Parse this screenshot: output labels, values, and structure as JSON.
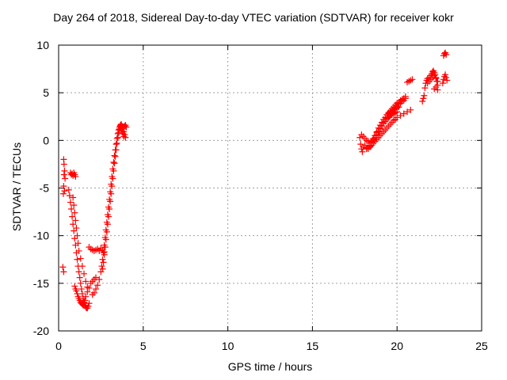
{
  "chart_data": {
    "type": "scatter",
    "title": "Day 264 of 2018, Sidereal Day-to-day VTEC variation (SDTVAR) for receiver kokr",
    "xlabel": "GPS time / hours",
    "ylabel": "SDTVAR / TECUs",
    "xlim": [
      0,
      25
    ],
    "ylim": [
      -20,
      10
    ],
    "xticks": [
      "0",
      "5",
      "10",
      "15",
      "20",
      "25"
    ],
    "yticks": [
      "10",
      "5",
      "0",
      "-5",
      "-10",
      "-15",
      "-20"
    ],
    "grid": true,
    "marker": "+",
    "color": "#ff0000",
    "series": [
      {
        "x": [
          0.25,
          0.3,
          0.3,
          0.32,
          0.35,
          0.38,
          0.3,
          0.35,
          0.28,
          0.32,
          0.7,
          0.75,
          0.8,
          0.85,
          0.9,
          0.95,
          1.0,
          0.6,
          0.65,
          0.7,
          0.75,
          0.8,
          0.85,
          0.9,
          0.95,
          1.0,
          1.05,
          1.1,
          1.15,
          1.2,
          1.25,
          1.3,
          1.35,
          1.4,
          1.45,
          1.5,
          1.55,
          1.6,
          1.65,
          1.7,
          1.75,
          1.8,
          0.85,
          0.9,
          0.95,
          1.0,
          1.05,
          1.1,
          1.15,
          1.2,
          1.3,
          1.4,
          1.5,
          1.6,
          1.7,
          0.95,
          1.0,
          1.05,
          1.1,
          1.15,
          1.2,
          1.25,
          1.3,
          1.35,
          1.4,
          1.45,
          1.5,
          1.55,
          1.6,
          1.7,
          1.8,
          1.9,
          2.0,
          2.1,
          2.2,
          1.8,
          1.9,
          2.0,
          2.1,
          2.2,
          2.3,
          2.4,
          2.5,
          2.6,
          2.7,
          2.0,
          2.1,
          2.2,
          2.3,
          2.4,
          2.5,
          2.55,
          2.6,
          2.65,
          2.7,
          2.75,
          2.8,
          2.85,
          2.9,
          2.95,
          3.0,
          3.05,
          3.1,
          3.15,
          3.2,
          3.25,
          3.3,
          3.35,
          3.4,
          3.45,
          3.5,
          3.55,
          3.6,
          3.65,
          3.7,
          3.75,
          3.8,
          3.85,
          3.9,
          3.95,
          2.6,
          2.65,
          2.7,
          2.75,
          2.8,
          2.85,
          2.9,
          2.95,
          3.0,
          3.05,
          3.1,
          3.15,
          3.2,
          3.25,
          3.3,
          3.35,
          3.4,
          3.45,
          3.5,
          3.55,
          3.6,
          3.65,
          3.7,
          3.75,
          3.8,
          3.85,
          3.9,
          3.95,
          4.0
        ],
        "y": [
          -13.3,
          -13.8,
          -2.0,
          -2.5,
          -3.2,
          -4.0,
          -4.8,
          -5.3,
          -5.6,
          -3.6,
          -3.4,
          -3.6,
          -3.5,
          -3.7,
          -3.4,
          -3.6,
          -3.8,
          -5.2,
          -5.8,
          -6.5,
          -7.2,
          -8.0,
          -8.8,
          -9.5,
          -10.3,
          -11.0,
          -11.8,
          -12.5,
          -13.2,
          -13.8,
          -14.4,
          -15.0,
          -15.6,
          -16.1,
          -16.6,
          -17.0,
          -17.3,
          -17.5,
          -17.6,
          -17.6,
          -17.4,
          -17.1,
          -6.0,
          -6.8,
          -7.6,
          -8.4,
          -9.2,
          -10.0,
          -10.8,
          -11.6,
          -12.4,
          -13.2,
          -14.0,
          -14.8,
          -15.4,
          -15.3,
          -15.6,
          -15.8,
          -16.1,
          -16.4,
          -16.6,
          -16.8,
          -17.0,
          -17.1,
          -17.2,
          -17.3,
          -17.1,
          -16.8,
          -16.4,
          -15.9,
          -15.5,
          -15.0,
          -14.8,
          -14.6,
          -14.4,
          -11.2,
          -11.4,
          -11.5,
          -11.6,
          -11.5,
          -11.4,
          -11.6,
          -11.3,
          -11.5,
          -11.7,
          -16.2,
          -16.0,
          -15.6,
          -15.2,
          -14.6,
          -13.8,
          -13.2,
          -12.5,
          -11.8,
          -11.0,
          -10.2,
          -9.4,
          -8.6,
          -7.8,
          -7.0,
          -6.2,
          -5.4,
          -4.6,
          -3.8,
          -3.0,
          -2.3,
          -1.6,
          -1.0,
          -0.4,
          0.2,
          0.7,
          1.1,
          1.4,
          1.6,
          1.7,
          1.5,
          1.2,
          0.9,
          0.6,
          0.3,
          -13.5,
          -12.8,
          -12.0,
          -11.2,
          -10.4,
          -9.6,
          -8.8,
          -8.0,
          -7.2,
          -6.4,
          -5.6,
          -4.8,
          -4.0,
          -3.2,
          -2.4,
          -1.7,
          -1.0,
          -0.3,
          0.3,
          0.8,
          1.2,
          1.5,
          1.3,
          1.0,
          0.7,
          0.4,
          1.5,
          1.6,
          1.4
        ]
      },
      {
        "x": [
          17.8,
          17.85,
          17.9,
          17.95,
          18.0,
          18.1,
          18.2,
          18.3,
          18.4,
          18.5,
          18.6,
          18.7,
          18.8,
          18.9,
          19.0,
          19.1,
          19.2,
          19.3,
          19.4,
          19.5,
          19.6,
          19.7,
          19.8,
          19.9,
          20.0,
          20.1,
          20.2,
          20.3,
          20.4,
          20.5,
          17.9,
          18.0,
          18.1,
          18.2,
          18.3,
          18.4,
          18.5,
          18.6,
          18.7,
          18.8,
          18.9,
          19.0,
          19.1,
          19.2,
          19.3,
          19.4,
          19.5,
          19.6,
          19.7,
          19.8,
          19.9,
          20.0,
          20.1,
          20.2,
          20.3,
          20.4,
          20.5,
          18.2,
          18.3,
          18.4,
          18.5,
          18.6,
          18.7,
          18.8,
          18.9,
          19.0,
          19.1,
          19.2,
          19.3,
          19.4,
          19.5,
          19.6,
          19.7,
          19.8,
          19.9,
          20.0,
          20.2,
          20.4,
          20.6,
          20.8,
          18.6,
          18.7,
          18.8,
          18.9,
          19.0,
          19.1,
          19.2,
          19.3,
          19.4,
          19.5,
          19.6,
          19.7,
          19.8,
          19.9,
          20.0,
          19.5,
          19.6,
          19.7,
          19.8,
          19.9,
          20.0,
          20.1,
          20.6,
          20.7,
          20.8,
          20.9,
          21.5,
          21.55,
          21.6,
          21.65,
          21.7,
          21.75,
          21.8,
          21.9,
          22.0,
          22.05,
          22.1,
          22.15,
          22.2,
          22.25,
          22.3,
          22.35,
          22.4,
          21.8,
          21.9,
          22.0,
          22.1,
          22.2,
          22.3,
          22.4,
          22.2,
          22.3,
          22.4,
          22.7,
          22.75,
          22.8,
          22.85,
          22.9,
          22.95,
          22.75,
          22.8,
          22.85,
          22.9
        ],
        "y": [
          0.3,
          -0.4,
          -0.9,
          -1.2,
          -0.7,
          -0.5,
          -0.8,
          -0.9,
          -0.7,
          -0.3,
          0.1,
          0.5,
          0.9,
          1.3,
          1.6,
          1.9,
          2.2,
          2.4,
          2.7,
          2.9,
          3.1,
          3.3,
          3.5,
          3.7,
          3.9,
          4.0,
          4.2,
          4.3,
          4.4,
          4.6,
          0.6,
          0.4,
          0.2,
          0.0,
          -0.1,
          -0.3,
          -0.2,
          0.0,
          0.3,
          0.6,
          0.9,
          1.2,
          1.5,
          1.8,
          2.0,
          2.3,
          2.5,
          2.7,
          3.0,
          3.2,
          3.4,
          3.6,
          3.8,
          3.9,
          4.1,
          4.2,
          4.4,
          -0.9,
          -0.8,
          -0.6,
          -0.5,
          -0.3,
          -0.1,
          0.1,
          0.3,
          0.5,
          0.7,
          0.9,
          1.1,
          1.3,
          1.5,
          1.7,
          1.9,
          2.1,
          2.2,
          2.4,
          2.6,
          2.8,
          3.0,
          3.2,
          0.2,
          0.5,
          0.8,
          1.0,
          1.3,
          1.5,
          1.8,
          2.0,
          2.2,
          2.4,
          2.6,
          2.7,
          2.8,
          2.9,
          3.0,
          2.8,
          3.0,
          3.1,
          3.2,
          3.3,
          3.4,
          3.5,
          6.1,
          6.2,
          6.3,
          6.4,
          4.1,
          4.4,
          4.7,
          5.5,
          6.0,
          6.3,
          6.5,
          6.6,
          6.8,
          7.0,
          7.2,
          7.3,
          7.1,
          6.9,
          6.6,
          6.2,
          5.8,
          6.0,
          6.2,
          6.4,
          6.6,
          6.8,
          6.5,
          6.2,
          5.4,
          5.6,
          5.3,
          6.0,
          6.4,
          6.7,
          6.9,
          6.6,
          6.3,
          8.9,
          9.1,
          9.2,
          9.0
        ]
      }
    ]
  }
}
